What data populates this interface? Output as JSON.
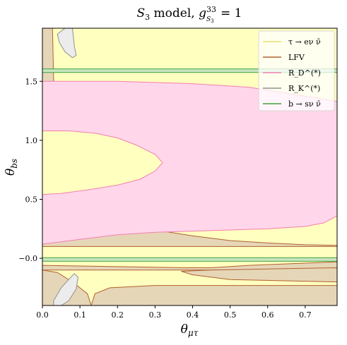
{
  "chart_data": {
    "type": "area",
    "title": "S₃ model, g₍S₃₎³³ = 1",
    "xlabel": "θ_{μτ}",
    "ylabel": "θ_{bs}",
    "xlim": [
      0.0,
      0.785
    ],
    "ylim": [
      -0.4,
      1.95
    ],
    "x_ticks": [
      "0.0",
      "0.1",
      "0.2",
      "0.3",
      "0.4",
      "0.5",
      "0.6",
      "0.7"
    ],
    "y_ticks": [
      "−0.0",
      "0.5",
      "1.0",
      "1.5"
    ],
    "x_tick_values": [
      0.0,
      0.1,
      0.2,
      0.3,
      0.4,
      0.5,
      0.6,
      0.7
    ],
    "y_tick_values": [
      0.0,
      0.5,
      1.0,
      1.5
    ],
    "legend_position": "top-right",
    "colors": {
      "tau": "#ffffc0",
      "tau_line": "#e8e070",
      "lfv_fill": "#e6d6b8",
      "lfv_line": "#b06030",
      "rd_fill": "#ffd6ea",
      "rd_line": "#f080b0",
      "rk_fill": "#ececec",
      "rk_line": "#909090",
      "bsnn_fill": "#c8e6c0",
      "bsnn_line": "#40a040"
    },
    "series": [
      {
        "name": "τ → eν ν̄",
        "key": "tau",
        "regions": [
          [
            [
              0.0,
              -0.4
            ],
            [
              0.785,
              -0.4
            ],
            [
              0.785,
              1.95
            ],
            [
              0.0,
              1.95
            ]
          ]
        ]
      },
      {
        "name": "LFV",
        "key": "lfv",
        "regions": [
          [
            [
              0.0,
              -0.4
            ],
            [
              0.785,
              -0.4
            ],
            [
              0.785,
              -0.23
            ],
            [
              0.55,
              -0.23
            ],
            [
              0.3,
              -0.23
            ],
            [
              0.18,
              -0.25
            ],
            [
              0.14,
              -0.3
            ],
            [
              0.13,
              -0.4
            ]
          ],
          [
            [
              0.0,
              -0.4
            ],
            [
              0.13,
              -0.4
            ],
            [
              0.12,
              -0.3
            ],
            [
              0.08,
              -0.2
            ],
            [
              0.04,
              -0.12
            ],
            [
              0.0,
              -0.1
            ]
          ],
          [
            [
              0.0,
              -0.1
            ],
            [
              0.785,
              -0.1
            ],
            [
              0.785,
              -0.03
            ],
            [
              0.55,
              -0.06
            ],
            [
              0.45,
              -0.08
            ],
            [
              0.38,
              -0.08
            ],
            [
              0.0,
              -0.06
            ]
          ],
          [
            [
              0.785,
              -0.08
            ],
            [
              0.785,
              -0.2
            ],
            [
              0.5,
              -0.18
            ],
            [
              0.4,
              -0.14
            ],
            [
              0.37,
              -0.11
            ],
            [
              0.45,
              -0.1
            ],
            [
              0.6,
              -0.09
            ]
          ],
          [
            [
              0.0,
              1.95
            ],
            [
              0.027,
              1.95
            ],
            [
              0.03,
              1.5
            ],
            [
              0.032,
              1.2
            ],
            [
              0.037,
              1.0
            ],
            [
              0.045,
              0.85
            ],
            [
              0.06,
              0.72
            ],
            [
              0.085,
              0.6
            ],
            [
              0.12,
              0.5
            ],
            [
              0.16,
              0.42
            ],
            [
              0.2,
              0.36
            ],
            [
              0.25,
              0.29
            ],
            [
              0.32,
              0.23
            ],
            [
              0.4,
              0.19
            ],
            [
              0.5,
              0.15
            ],
            [
              0.6,
              0.13
            ],
            [
              0.7,
              0.115
            ],
            [
              0.785,
              0.11
            ],
            [
              0.785,
              0.1
            ],
            [
              0.0,
              0.1
            ]
          ]
        ]
      },
      {
        "name": "R_D^(*)",
        "key": "rd",
        "regions": [
          [
            [
              0.0,
              1.5
            ],
            [
              0.2,
              1.5
            ],
            [
              0.4,
              1.48
            ],
            [
              0.55,
              1.45
            ],
            [
              0.65,
              1.4
            ],
            [
              0.785,
              1.33
            ],
            [
              0.785,
              0.36
            ],
            [
              0.75,
              0.3
            ],
            [
              0.7,
              0.27
            ],
            [
              0.6,
              0.25
            ],
            [
              0.5,
              0.24
            ],
            [
              0.4,
              0.23
            ],
            [
              0.3,
              0.22
            ],
            [
              0.2,
              0.2
            ],
            [
              0.1,
              0.16
            ],
            [
              0.05,
              0.14
            ],
            [
              0.0,
              0.12
            ]
          ]
        ]
      },
      {
        "name": "R_D^(*) hole",
        "key": "tau_hole",
        "regions": [
          [
            [
              0.0,
              1.08
            ],
            [
              0.07,
              1.08
            ],
            [
              0.14,
              1.06
            ],
            [
              0.2,
              1.02
            ],
            [
              0.25,
              0.96
            ],
            [
              0.3,
              0.88
            ],
            [
              0.32,
              0.81
            ],
            [
              0.3,
              0.74
            ],
            [
              0.26,
              0.67
            ],
            [
              0.2,
              0.62
            ],
            [
              0.12,
              0.58
            ],
            [
              0.05,
              0.55
            ],
            [
              0.0,
              0.54
            ]
          ]
        ]
      },
      {
        "name": "R_K^(*)",
        "key": "rk",
        "regions": [
          [
            [
              0.04,
              1.9
            ],
            [
              0.06,
              1.95
            ],
            [
              0.08,
              1.95
            ],
            [
              0.085,
              1.8
            ],
            [
              0.09,
              1.72
            ],
            [
              0.08,
              1.7
            ],
            [
              0.06,
              1.75
            ],
            [
              0.045,
              1.83
            ]
          ],
          [
            [
              0.03,
              -0.36
            ],
            [
              0.05,
              -0.25
            ],
            [
              0.07,
              -0.18
            ],
            [
              0.085,
              -0.13
            ],
            [
              0.095,
              -0.16
            ],
            [
              0.09,
              -0.26
            ],
            [
              0.07,
              -0.36
            ],
            [
              0.05,
              -0.4
            ],
            [
              0.03,
              -0.4
            ]
          ]
        ]
      },
      {
        "name": "b → sν ν̄",
        "key": "bsnn",
        "bands": [
          [
            1.575,
            1.605
          ],
          [
            -0.025,
            0.005
          ]
        ]
      }
    ]
  }
}
